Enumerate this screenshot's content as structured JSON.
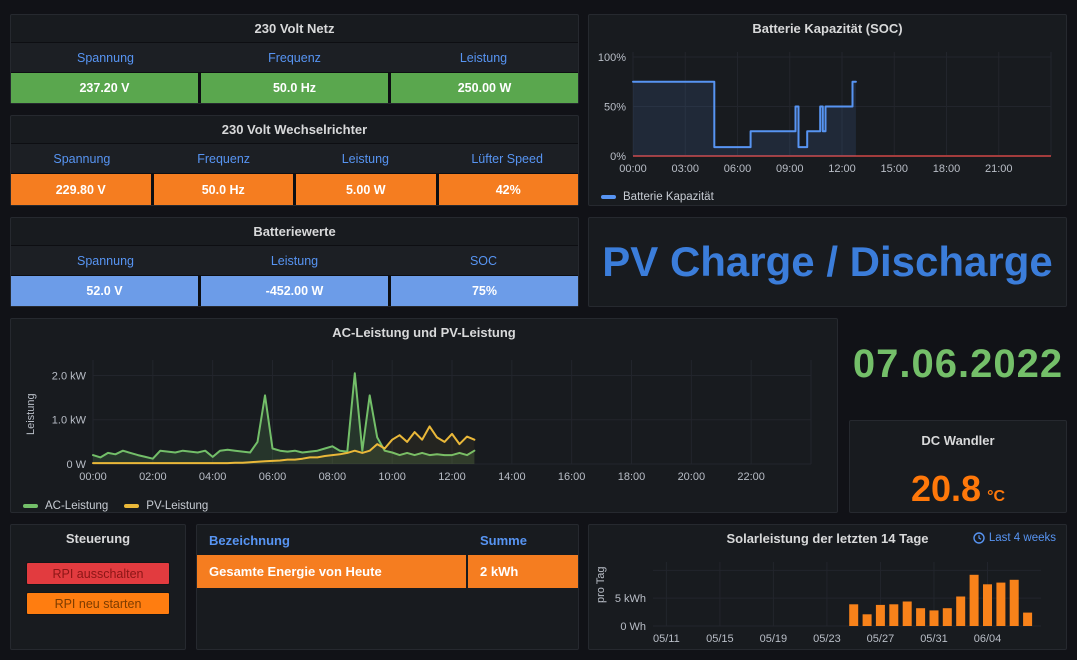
{
  "theme": {
    "page_bg": "#111217",
    "panel_bg": "#181b1f",
    "panel_border": "#26292f",
    "title_color": "#d8d9da",
    "header_blue": "#5794f2",
    "tick_color": "#b9bec7",
    "grid_color": "#22252c"
  },
  "netz": {
    "title": "230 Volt Netz",
    "headers": [
      "Spannung",
      "Frequenz",
      "Leistung"
    ],
    "values": [
      "237.20 V",
      "50.0 Hz",
      "250.00 W"
    ],
    "value_bg": "#5aa74e"
  },
  "wr": {
    "title": "230 Volt Wechselrichter",
    "headers": [
      "Spannung",
      "Frequenz",
      "Leistung",
      "Lüfter Speed"
    ],
    "values": [
      "229.80 V",
      "50.0 Hz",
      "5.00 W",
      "42%"
    ],
    "value_bg": "#f57d20"
  },
  "batt": {
    "title": "Batteriewerte",
    "headers": [
      "Spannung",
      "Leistung",
      "SOC"
    ],
    "values": [
      "52.0 V",
      "-452.00 W",
      "75%"
    ],
    "value_bg": "#6c9ce8"
  },
  "soc": {
    "title": "Batterie Kapazität (SOC)",
    "legend": "Batterie Kapazität"
  },
  "pvtext": {
    "text": "PV Charge / Discharge",
    "color": "#3b7dda"
  },
  "ac": {
    "title": "AC-Leistung und PV-Leistung",
    "ylabel": "Leistung",
    "legend": [
      "AC-Leistung",
      "PV-Leistung"
    ]
  },
  "date": {
    "value": "07.06.2022",
    "color": "#74bf69"
  },
  "dc": {
    "title": "DC Wandler",
    "value": "20.8",
    "unit": "°C",
    "color": "#ff780a"
  },
  "steuerung": {
    "title": "Steuerung",
    "buttons": [
      {
        "label": "RPI ausschalten",
        "bg": "#e23b3f",
        "fg": "#8c1616"
      },
      {
        "label": "RPI neu starten",
        "bg": "#ff7d10",
        "fg": "#7d3c00"
      }
    ]
  },
  "etable": {
    "headers": [
      "Bezeichnung",
      "Summe"
    ],
    "row": {
      "name": "Gesamte Energie von Heute",
      "sum": "2 kWh"
    },
    "row_bg": "#f57d20"
  },
  "solar": {
    "title": "Solarleistung der letzten 14 Tage",
    "range_label": "Last 4 weeks",
    "ylabel": "pro Tag"
  },
  "chart_data": [
    {
      "type": "line",
      "title": "Batterie Kapazität (SOC)",
      "xlim": [
        0,
        24
      ],
      "ylim": [
        0,
        105
      ],
      "x_ticks": [
        {
          "v": 0,
          "label": "00:00"
        },
        {
          "v": 3,
          "label": "03:00"
        },
        {
          "v": 6,
          "label": "06:00"
        },
        {
          "v": 9,
          "label": "09:00"
        },
        {
          "v": 12,
          "label": "12:00"
        },
        {
          "v": 15,
          "label": "15:00"
        },
        {
          "v": 18,
          "label": "18:00"
        },
        {
          "v": 21,
          "label": "21:00"
        }
      ],
      "x_grid_extra": [
        24
      ],
      "y_ticks": [
        {
          "v": 0,
          "label": "0%"
        },
        {
          "v": 50,
          "label": "50%"
        },
        {
          "v": 100,
          "label": "100%"
        }
      ],
      "threshold": {
        "y": 0,
        "color": "#a33c3c"
      },
      "series": [
        {
          "name": "Batterie Kapazität",
          "color": "#5794f2",
          "fill_opacity": 0.12,
          "points": [
            [
              0,
              75
            ],
            [
              4.67,
              75
            ],
            [
              4.67,
              9
            ],
            [
              6.75,
              9
            ],
            [
              6.75,
              25
            ],
            [
              9.33,
              25
            ],
            [
              9.33,
              50
            ],
            [
              9.5,
              50
            ],
            [
              9.5,
              9
            ],
            [
              10,
              9
            ],
            [
              10,
              25
            ],
            [
              10.75,
              25
            ],
            [
              10.75,
              50
            ],
            [
              10.9,
              50
            ],
            [
              10.9,
              25
            ],
            [
              11.05,
              25
            ],
            [
              11.05,
              50
            ],
            [
              12.6,
              50
            ],
            [
              12.6,
              75
            ],
            [
              12.8,
              75
            ]
          ]
        }
      ]
    },
    {
      "type": "line",
      "title": "AC-Leistung und PV-Leistung",
      "ylabel": "Leistung",
      "xlim": [
        0,
        24
      ],
      "ylim": [
        0,
        2.35
      ],
      "x_step": 0.25,
      "x_ticks": [
        {
          "v": 0,
          "label": "00:00"
        },
        {
          "v": 2,
          "label": "02:00"
        },
        {
          "v": 4,
          "label": "04:00"
        },
        {
          "v": 6,
          "label": "06:00"
        },
        {
          "v": 8,
          "label": "08:00"
        },
        {
          "v": 10,
          "label": "10:00"
        },
        {
          "v": 12,
          "label": "12:00"
        },
        {
          "v": 14,
          "label": "14:00"
        },
        {
          "v": 16,
          "label": "16:00"
        },
        {
          "v": 18,
          "label": "18:00"
        },
        {
          "v": 20,
          "label": "20:00"
        },
        {
          "v": 22,
          "label": "22:00"
        }
      ],
      "x_grid_extra": [
        24
      ],
      "y_ticks": [
        {
          "v": 0,
          "label": "0 W"
        },
        {
          "v": 1,
          "label": "1.0 kW"
        },
        {
          "v": 2,
          "label": "2.0 kW"
        }
      ],
      "series": [
        {
          "name": "AC-Leistung",
          "color": "#73bf69",
          "fill_opacity": 0.16,
          "values": [
            0.2,
            0.15,
            0.25,
            0.22,
            0.3,
            0.25,
            0.2,
            0.16,
            0.12,
            0.3,
            0.28,
            0.26,
            0.3,
            0.28,
            0.26,
            0.3,
            0.16,
            0.3,
            0.32,
            0.3,
            0.28,
            0.26,
            0.5,
            1.55,
            0.35,
            0.3,
            0.28,
            0.3,
            0.26,
            0.28,
            0.3,
            0.35,
            0.4,
            0.3,
            0.28,
            2.05,
            0.3,
            1.55,
            0.6,
            0.3,
            0.26,
            0.2,
            0.25,
            0.2,
            0.25,
            0.2,
            0.22,
            0.2,
            0.2,
            0.25,
            0.2,
            0.3
          ]
        },
        {
          "name": "PV-Leistung",
          "color": "#eab839",
          "fill_opacity": 0.06,
          "values": [
            0.02,
            0.02,
            0.02,
            0.02,
            0.02,
            0.02,
            0.02,
            0.02,
            0.02,
            0.02,
            0.02,
            0.02,
            0.02,
            0.02,
            0.02,
            0.02,
            0.02,
            0.02,
            0.02,
            0.03,
            0.03,
            0.04,
            0.05,
            0.06,
            0.07,
            0.08,
            0.1,
            0.1,
            0.12,
            0.15,
            0.15,
            0.18,
            0.2,
            0.22,
            0.25,
            0.3,
            0.25,
            0.3,
            0.45,
            0.35,
            0.55,
            0.65,
            0.5,
            0.72,
            0.55,
            0.85,
            0.6,
            0.5,
            0.68,
            0.45,
            0.62,
            0.55
          ]
        }
      ]
    },
    {
      "type": "bar",
      "title": "Solarleistung der letzten 14 Tage",
      "ylabel": "pro Tag",
      "xlim": [
        0,
        29
      ],
      "ylim": [
        0,
        11.5
      ],
      "start_offset": 15,
      "bar_color": "#f8821a",
      "categories": [
        "05/25",
        "05/26",
        "05/27",
        "05/28",
        "05/29",
        "05/30",
        "05/31",
        "06/01",
        "06/02",
        "06/03",
        "06/04",
        "06/05",
        "06/06",
        "06/07"
      ],
      "values": [
        3.9,
        2.1,
        3.8,
        3.9,
        4.4,
        3.2,
        2.8,
        3.2,
        5.3,
        9.2,
        7.5,
        7.8,
        8.3,
        2.4
      ],
      "x_ticks": [
        {
          "v": 1,
          "label": "05/11"
        },
        {
          "v": 5,
          "label": "05/15"
        },
        {
          "v": 9,
          "label": "05/19"
        },
        {
          "v": 13,
          "label": "05/23"
        },
        {
          "v": 17,
          "label": "05/27"
        },
        {
          "v": 21,
          "label": "05/31"
        },
        {
          "v": 25,
          "label": "06/04"
        }
      ],
      "y_ticks": [
        {
          "v": 0,
          "label": "0 Wh"
        },
        {
          "v": 5,
          "label": "5 kWh"
        },
        {
          "v": 10,
          "label": ""
        }
      ]
    }
  ]
}
